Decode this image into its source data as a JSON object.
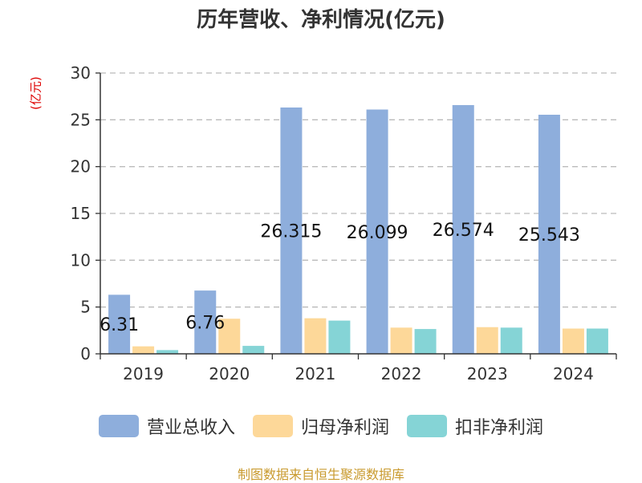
{
  "title": "历年营收、净利情况(亿元)",
  "source": "制图数据来自恒生聚源数据库",
  "chart_data": {
    "type": "bar",
    "title": "历年营收、净利情况(亿元)",
    "ylabel": "(亿元)",
    "xlabel": "",
    "ylim": [
      0,
      30
    ],
    "yticks": [
      0,
      5,
      10,
      15,
      20,
      25,
      30
    ],
    "grid": true,
    "legend_position": "bottom",
    "categories": [
      "2019",
      "2020",
      "2021",
      "2022",
      "2023",
      "2024"
    ],
    "series": [
      {
        "name": "营业总收入",
        "color": "#8eaedc",
        "values": [
          6.31,
          6.76,
          26.315,
          26.099,
          26.574,
          25.543
        ],
        "labels": [
          "6.31",
          "6.76",
          "26.315",
          "26.099",
          "26.574",
          "25.543"
        ]
      },
      {
        "name": "归母净利润",
        "color": "#fdd899",
        "values": [
          0.8,
          3.75,
          3.8,
          2.8,
          2.85,
          2.7
        ]
      },
      {
        "name": "扣非净利润",
        "color": "#85d4d6",
        "values": [
          0.4,
          0.85,
          3.55,
          2.65,
          2.8,
          2.7
        ]
      }
    ]
  }
}
